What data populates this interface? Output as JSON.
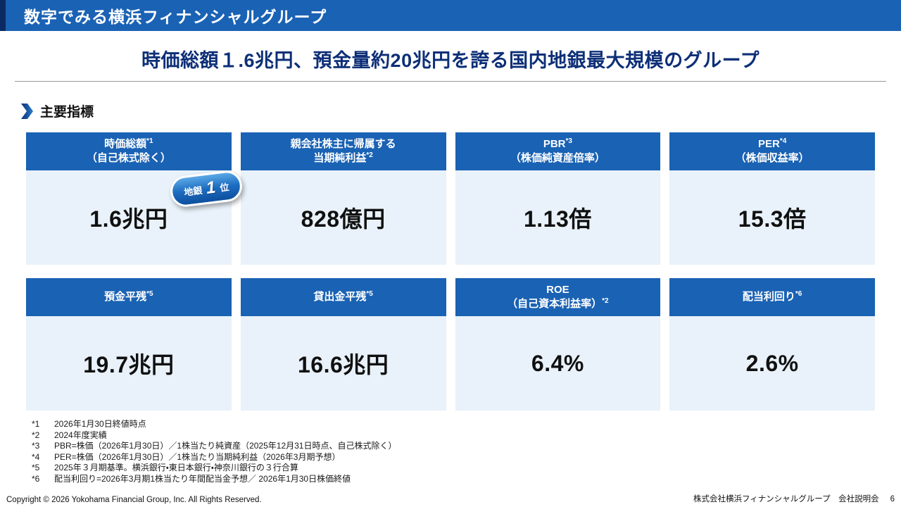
{
  "page": {
    "title_bar": "数字でみる横浜フィナンシャルグループ",
    "headline": "時価総額１.6兆円、預金量約20兆円を誇る国内地銀最大規模のグループ",
    "section_label": "主要指標"
  },
  "colors": {
    "primary_blue": "#1a62b4",
    "dark_navy": "#0b2a63",
    "headline_navy": "#0d2f77",
    "card_body_light_blue": "#e9f2fa"
  },
  "cards": [
    {
      "header_lines": [
        {
          "text": "時価総額",
          "sup": "*1"
        },
        {
          "text": "（自己株式除く）",
          "sup": ""
        }
      ],
      "value": "1.6兆円",
      "badge": {
        "prefix": "地銀",
        "number": "1",
        "suffix": "位"
      }
    },
    {
      "header_lines": [
        {
          "text": "親会社株主に帰属する",
          "sup": ""
        },
        {
          "text": "当期純利益",
          "sup": "*2"
        }
      ],
      "value": "828億円"
    },
    {
      "header_lines": [
        {
          "text": "PBR",
          "sup": "*3"
        },
        {
          "text": "（株価純資産倍率）",
          "sup": ""
        }
      ],
      "value": "1.13倍"
    },
    {
      "header_lines": [
        {
          "text": "PER",
          "sup": "*4"
        },
        {
          "text": "（株価収益率）",
          "sup": ""
        }
      ],
      "value": "15.3倍"
    },
    {
      "header_lines": [
        {
          "text": "預金平残",
          "sup": "*5"
        }
      ],
      "value": "19.7兆円"
    },
    {
      "header_lines": [
        {
          "text": "貸出金平残",
          "sup": "*5"
        }
      ],
      "value": "16.6兆円"
    },
    {
      "header_lines": [
        {
          "text": "ROE",
          "sup": ""
        },
        {
          "text": "（自己資本利益率）",
          "sup": "*2"
        }
      ],
      "value": "6.4%"
    },
    {
      "header_lines": [
        {
          "text": "配当利回り",
          "sup": "*6"
        }
      ],
      "value": "2.6%"
    }
  ],
  "footnotes": [
    {
      "marker": "*1",
      "text": "2026年1月30日終値時点"
    },
    {
      "marker": "*2",
      "text": "2024年度実績"
    },
    {
      "marker": "*3",
      "text": "PBR=株価（2026年1月30日）／1株当たり純資産（2025年12月31日時点、自己株式除く）"
    },
    {
      "marker": "*4",
      "text": "PER=株価（2026年1月30日）／1株当たり当期純利益（2026年3月期予想）"
    },
    {
      "marker": "*5",
      "text": "2025年３月期基準。横浜銀行・東日本銀行・神奈川銀行の３行合算"
    },
    {
      "marker": "*6",
      "text": "配当利回り=2026年3月期1株当たり年間配当金予想／ 2026年1月30日株価終値"
    }
  ],
  "footer": {
    "copyright": "Copyright © 2026 Yokohama Financial Group, Inc. All Rights Reserved.",
    "right_label": "株式会社横浜フィナンシャルグループ　会社説明会",
    "page_number": "6"
  }
}
